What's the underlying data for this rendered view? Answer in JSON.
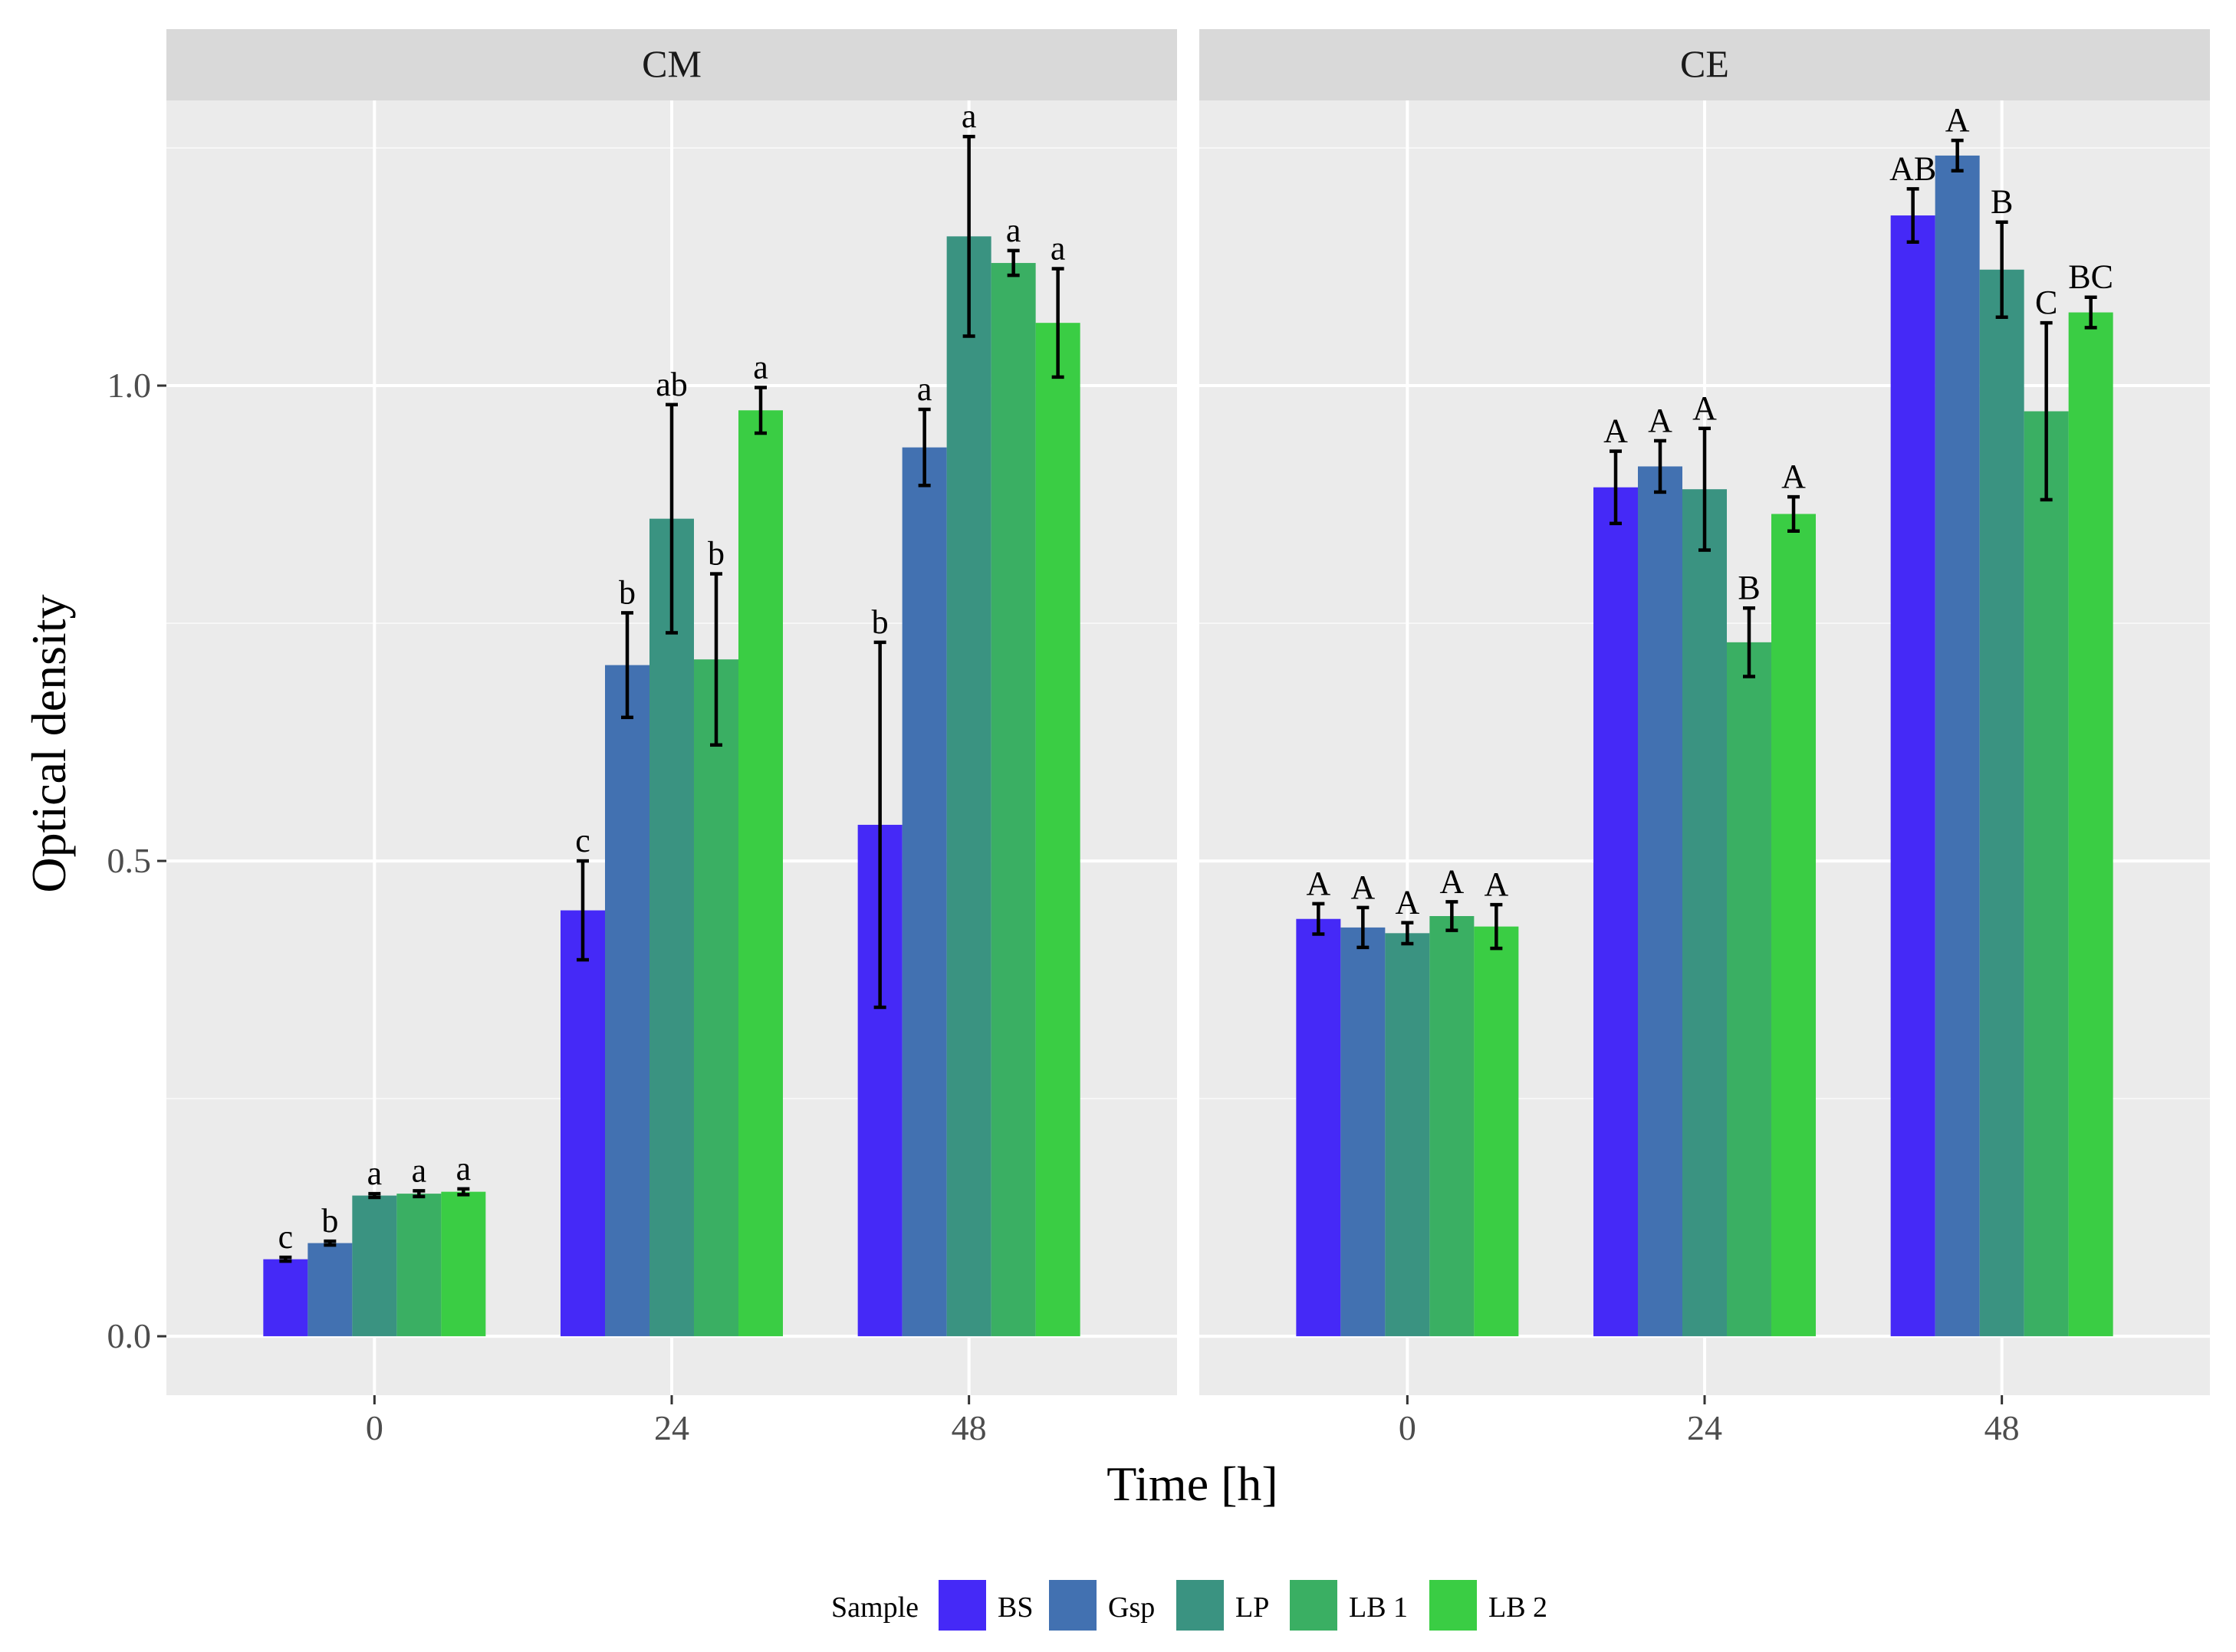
{
  "chart_data": {
    "type": "bar",
    "facets": [
      "CM",
      "CE"
    ],
    "categories": [
      "0",
      "24",
      "48"
    ],
    "xlabel": "Time [h]",
    "ylabel": "Optical density",
    "ylim": [
      -0.062,
      1.3
    ],
    "yticks": [
      0.0,
      0.5,
      1.0
    ],
    "ytick_labels": [
      "0.0",
      "0.5",
      "1.0"
    ],
    "grid": true,
    "legend_title": "Sample",
    "legend_position": "bottom",
    "series": [
      {
        "name": "BS",
        "color": "#4529F7"
      },
      {
        "name": "Gsp",
        "color": "#4271B1"
      },
      {
        "name": "LP",
        "color": "#3A9381"
      },
      {
        "name": "LB 1",
        "color": "#3AAF63"
      },
      {
        "name": "LB 2",
        "color": "#3ACD44"
      }
    ],
    "panels": [
      {
        "facet": "CM",
        "groups": [
          {
            "x": "0",
            "values": [
              0.081,
              0.098,
              0.148,
              0.15,
              0.152
            ],
            "errors": [
              0.002,
              0.002,
              0.002,
              0.003,
              0.003
            ],
            "labels": [
              "c",
              "b",
              "a",
              "a",
              "a"
            ]
          },
          {
            "x": "24",
            "values": [
              0.448,
              0.706,
              0.86,
              0.712,
              0.974
            ],
            "errors": [
              0.052,
              0.055,
              0.12,
              0.09,
              0.024
            ],
            "labels": [
              "c",
              "b",
              "ab",
              "b",
              "a"
            ]
          },
          {
            "x": "48",
            "values": [
              0.538,
              0.935,
              1.157,
              1.129,
              1.066
            ],
            "errors": [
              0.192,
              0.04,
              0.105,
              0.013,
              0.057
            ],
            "labels": [
              "b",
              "a",
              "a",
              "a",
              "a"
            ]
          }
        ]
      },
      {
        "facet": "CE",
        "groups": [
          {
            "x": "0",
            "values": [
              0.439,
              0.43,
              0.424,
              0.442,
              0.431
            ],
            "errors": [
              0.016,
              0.021,
              0.011,
              0.015,
              0.023
            ],
            "labels": [
              "A",
              "A",
              "A",
              "A",
              "A"
            ]
          },
          {
            "x": "24",
            "values": [
              0.893,
              0.915,
              0.891,
              0.73,
              0.865
            ],
            "errors": [
              0.038,
              0.027,
              0.064,
              0.036,
              0.018
            ],
            "labels": [
              "A",
              "A",
              "A",
              "B",
              "A"
            ]
          },
          {
            "x": "48",
            "values": [
              1.179,
              1.242,
              1.122,
              0.973,
              1.077
            ],
            "errors": [
              0.028,
              0.016,
              0.05,
              0.093,
              0.016
            ],
            "labels": [
              "AB",
              "A",
              "B",
              "C",
              "BC"
            ]
          }
        ]
      }
    ]
  }
}
